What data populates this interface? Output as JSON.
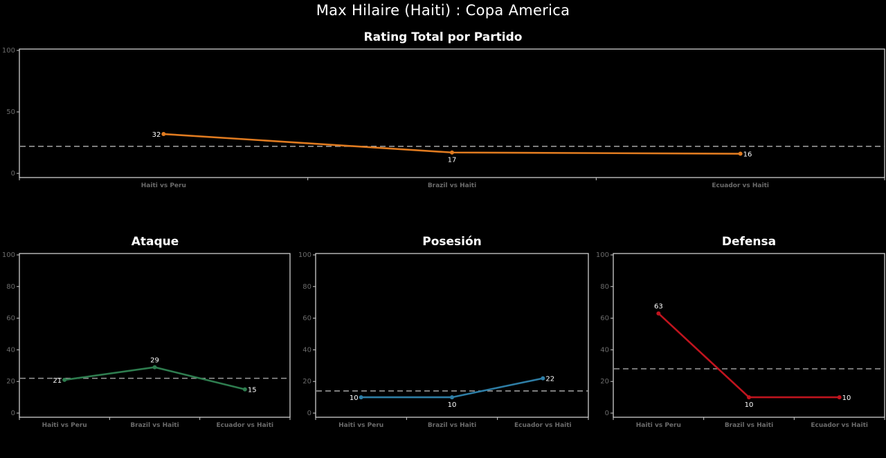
{
  "header": {
    "title": "Max Hilaire (Haiti) :  Copa  America"
  },
  "chart_data": [
    {
      "id": "total",
      "type": "line",
      "title": "Rating Total por Partido",
      "categories": [
        "Haiti vs Peru",
        "Brazil vs Haiti",
        "Ecuador vs Haiti"
      ],
      "values": [
        32,
        17,
        16
      ],
      "ylim": [
        0,
        100
      ],
      "yticks": [
        0,
        50,
        100
      ],
      "average_line": 22,
      "color": "#e07b20",
      "label_positions": [
        "left",
        "below",
        "right"
      ]
    },
    {
      "id": "ataque",
      "type": "line",
      "title": "Ataque",
      "categories": [
        "Haiti vs Peru",
        "Brazil vs Haiti",
        "Ecuador vs Haiti"
      ],
      "values": [
        21,
        29,
        15
      ],
      "ylim": [
        0,
        100
      ],
      "yticks": [
        0,
        20,
        40,
        60,
        80,
        100
      ],
      "average_line": 22,
      "color": "#2e7d4f",
      "label_positions": [
        "left",
        "above",
        "right"
      ]
    },
    {
      "id": "posesion",
      "type": "line",
      "title": "Posesión",
      "categories": [
        "Haiti vs Peru",
        "Brazil vs Haiti",
        "Ecuador vs Haiti"
      ],
      "values": [
        10,
        10,
        22
      ],
      "ylim": [
        0,
        100
      ],
      "yticks": [
        0,
        20,
        40,
        60,
        80,
        100
      ],
      "average_line": 14,
      "color": "#2e7ea6",
      "label_positions": [
        "left",
        "below",
        "right"
      ]
    },
    {
      "id": "defensa",
      "type": "line",
      "title": "Defensa",
      "categories": [
        "Haiti vs Peru",
        "Brazil vs Haiti",
        "Ecuador vs Haiti"
      ],
      "values": [
        63,
        10,
        10
      ],
      "ylim": [
        0,
        100
      ],
      "yticks": [
        0,
        20,
        40,
        60,
        80,
        100
      ],
      "average_line": 28,
      "color": "#c0141e",
      "label_positions": [
        "above",
        "below",
        "right"
      ]
    }
  ]
}
